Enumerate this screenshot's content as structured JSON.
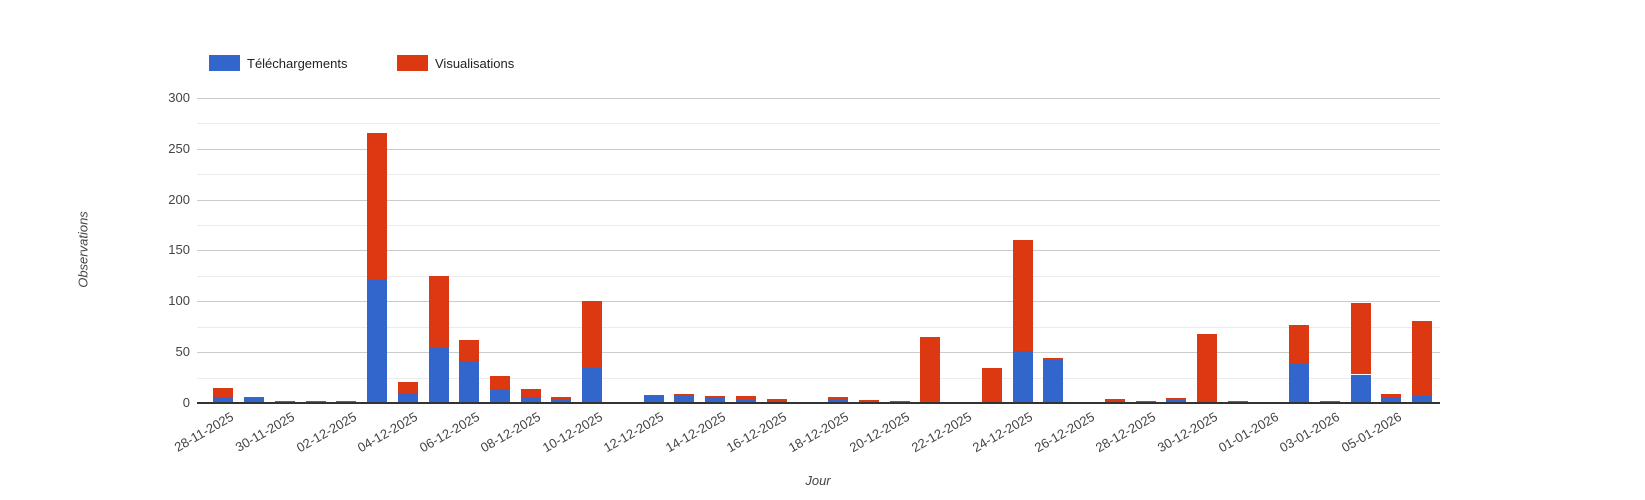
{
  "chart_data": {
    "type": "bar",
    "stacked": true,
    "title": "",
    "xlabel": "Jour",
    "ylabel": "Observations",
    "ylim": [
      0,
      300
    ],
    "y_ticks": [
      0,
      50,
      100,
      150,
      200,
      250,
      300
    ],
    "grid": true,
    "minor_grid_step": 25,
    "legend_position": "top-left",
    "x_tick_labels": [
      "28-11-2025",
      "30-11-2025",
      "02-12-2025",
      "04-12-2025",
      "06-12-2025",
      "08-12-2025",
      "10-12-2025",
      "12-12-2025",
      "14-12-2025",
      "16-12-2025",
      "18-12-2025",
      "20-12-2025",
      "22-12-2025",
      "24-12-2025",
      "26-12-2025",
      "28-12-2025",
      "30-12-2025",
      "01-01-2026",
      "03-01-2026",
      "05-01-2026"
    ],
    "categories": [
      "28-11-2025",
      "29-11-2025",
      "30-11-2025",
      "01-12-2025",
      "02-12-2025",
      "03-12-2025",
      "04-12-2025",
      "05-12-2025",
      "06-12-2025",
      "07-12-2025",
      "08-12-2025",
      "09-12-2025",
      "10-12-2025",
      "11-12-2025",
      "12-12-2025",
      "13-12-2025",
      "14-12-2025",
      "15-12-2025",
      "16-12-2025",
      "17-12-2025",
      "18-12-2025",
      "19-12-2025",
      "20-12-2025",
      "21-12-2025",
      "22-12-2025",
      "23-12-2025",
      "24-12-2025",
      "25-12-2025",
      "26-12-2025",
      "27-12-2025",
      "28-12-2025",
      "29-12-2025",
      "30-12-2025",
      "31-12-2025",
      "01-01-2026",
      "02-01-2026",
      "03-01-2026",
      "04-01-2026",
      "05-01-2026",
      "06-01-2026"
    ],
    "series": [
      {
        "name": "Téléchargements",
        "color": "#3366cc",
        "values": [
          6,
          5,
          1,
          0,
          0,
          121,
          10,
          54,
          41,
          14,
          6,
          4,
          34,
          0,
          7,
          8,
          6,
          3,
          2,
          0,
          4,
          1,
          0,
          0,
          0,
          2,
          51,
          42,
          0,
          2,
          0,
          3,
          2,
          0,
          0,
          38,
          1,
          28,
          5,
          7
        ]
      },
      {
        "name": "Visualisations",
        "color": "#dc3912",
        "values": [
          9,
          1,
          1,
          2,
          2,
          144,
          11,
          71,
          21,
          13,
          8,
          2,
          66,
          1,
          1,
          1,
          1,
          4,
          2,
          1,
          2,
          2,
          2,
          65,
          1,
          32,
          109,
          2,
          1,
          2,
          2,
          2,
          66,
          2,
          1,
          39,
          1,
          70,
          4,
          74
        ]
      }
    ]
  }
}
